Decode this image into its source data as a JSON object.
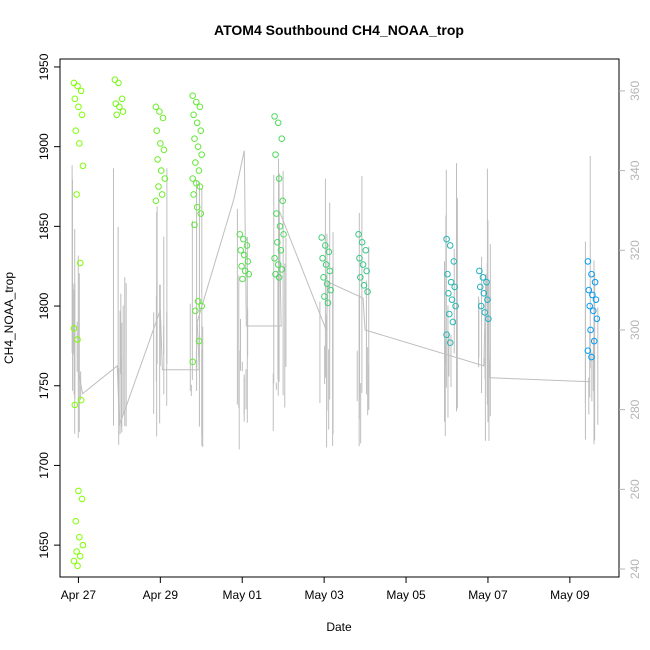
{
  "chart_data": {
    "type": "scatter",
    "title": "ATOM4 Southbound CH4_NOAA_trop",
    "xlabel": "Date",
    "ylabel": "CH4_NOAA_trop",
    "x_ticks": [
      "Apr 27",
      "Apr 29",
      "May 01",
      "May 03",
      "May 05",
      "May 07",
      "May 09"
    ],
    "x_tick_days": [
      0,
      2,
      4,
      6,
      8,
      10,
      12
    ],
    "xlim_days": [
      -0.45,
      13.2
    ],
    "ylim": [
      1630,
      1955
    ],
    "y_ticks": [
      1650,
      1700,
      1750,
      1800,
      1850,
      1900,
      1950
    ],
    "right_ylim": [
      238,
      368
    ],
    "right_y_ticks": [
      240,
      260,
      280,
      300,
      320,
      340,
      360
    ],
    "grid": false,
    "colors": {
      "marker_range": [
        "#7fff00",
        "#0099ff"
      ],
      "secondary_line": "#bebebe",
      "right_axis": "#b5b5b5"
    },
    "series": [
      {
        "x": 0.0,
        "y": [
          1940,
          1938,
          1935,
          1930,
          1925,
          1920,
          1910,
          1902,
          1888,
          1870,
          1827,
          1786,
          1779,
          1741,
          1738,
          1684,
          1679,
          1665,
          1655,
          1650,
          1646,
          1643,
          1640,
          1637
        ]
      },
      {
        "x": 1.0,
        "y": [
          1942,
          1940,
          1930,
          1927,
          1925,
          1922,
          1920
        ]
      },
      {
        "x": 2.0,
        "y": [
          1925,
          1922,
          1918,
          1910,
          1902,
          1898,
          1892,
          1885,
          1880,
          1875,
          1870,
          1866
        ]
      },
      {
        "x": 2.9,
        "y": [
          1932,
          1928,
          1925,
          1920,
          1915,
          1910,
          1905,
          1900,
          1895,
          1890,
          1885,
          1880,
          1877,
          1875,
          1870,
          1862,
          1858,
          1851,
          1803,
          1800,
          1797,
          1778,
          1765
        ]
      },
      {
        "x": 4.05,
        "y": [
          1845,
          1842,
          1838,
          1835,
          1832,
          1828,
          1825,
          1822,
          1820,
          1817
        ]
      },
      {
        "x": 4.9,
        "y": [
          1919,
          1915,
          1905,
          1895,
          1880,
          1866,
          1858,
          1850,
          1845,
          1840,
          1835,
          1830,
          1826,
          1823,
          1820,
          1818
        ]
      },
      {
        "x": 6.05,
        "y": [
          1843,
          1838,
          1834,
          1830,
          1826,
          1822,
          1818,
          1814,
          1810,
          1806,
          1802
        ]
      },
      {
        "x": 6.95,
        "y": [
          1845,
          1840,
          1835,
          1830,
          1826,
          1822,
          1818,
          1813,
          1809
        ]
      },
      {
        "x": 9.1,
        "y": [
          1842,
          1838,
          1828,
          1820,
          1815,
          1812,
          1808,
          1804,
          1800,
          1795,
          1790,
          1782,
          1777
        ]
      },
      {
        "x": 9.9,
        "y": [
          1822,
          1818,
          1815,
          1812,
          1808,
          1804,
          1800,
          1796,
          1792
        ]
      },
      {
        "x": 12.55,
        "y": [
          1828,
          1820,
          1815,
          1810,
          1807,
          1804,
          1800,
          1797,
          1792,
          1785,
          1778,
          1772,
          1768
        ]
      }
    ],
    "secondary_line": [
      {
        "x": 0.0,
        "v": 290
      },
      {
        "x": 0.1,
        "v": 284
      },
      {
        "x": 0.95,
        "v": 291
      },
      {
        "x": 1.0,
        "v": 276
      },
      {
        "x": 2.0,
        "v": 305
      },
      {
        "x": 2.05,
        "v": 290
      },
      {
        "x": 2.95,
        "v": 290
      },
      {
        "x": 2.9,
        "v": 302
      },
      {
        "x": 3.8,
        "v": 333
      },
      {
        "x": 4.05,
        "v": 345
      },
      {
        "x": 4.1,
        "v": 301
      },
      {
        "x": 4.95,
        "v": 301
      },
      {
        "x": 4.9,
        "v": 330
      },
      {
        "x": 6.05,
        "v": 300
      },
      {
        "x": 6.1,
        "v": 312
      },
      {
        "x": 6.95,
        "v": 308
      },
      {
        "x": 7.0,
        "v": 300
      },
      {
        "x": 9.9,
        "v": 291
      },
      {
        "x": 9.95,
        "v": 314
      },
      {
        "x": 10.05,
        "v": 288
      },
      {
        "x": 12.5,
        "v": 287
      }
    ]
  }
}
